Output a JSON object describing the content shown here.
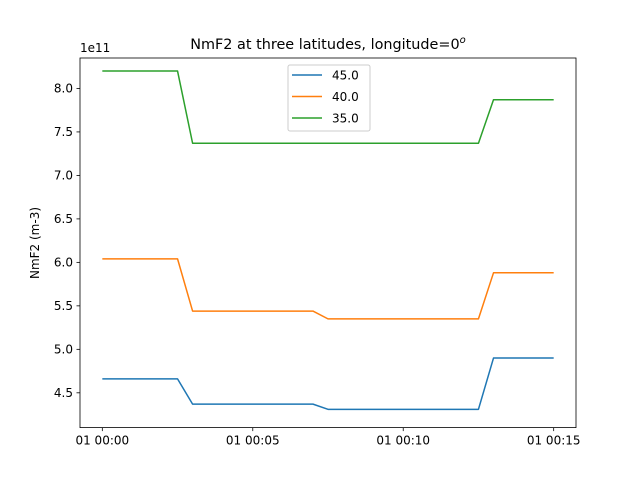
{
  "chart_data": {
    "type": "line",
    "title": "NmF2 at three latitudes, longitude=0",
    "title_superscript": "o",
    "xlabel": "",
    "ylabel": "NmF2 (m-3)",
    "y_offset_label": "1e11",
    "y_multiplier": 100000000000.0,
    "xlim": [
      "01 00:00",
      "01 00:15"
    ],
    "ylim": [
      4.1,
      8.35
    ],
    "x_ticks": [
      "01 00:00",
      "01 00:05",
      "01 00:10",
      "01 00:15"
    ],
    "y_ticks": [
      "4.5",
      "5.0",
      "5.5",
      "6.0",
      "6.5",
      "7.0",
      "7.5",
      "8.0"
    ],
    "x": [
      "01 00:00",
      "01 00:02:30",
      "01 00:03",
      "01 00:07",
      "01 00:07:30",
      "01 00:12:30",
      "01 00:13",
      "01 00:15"
    ],
    "series": [
      {
        "name": "45.0",
        "color": "#1f77b4",
        "values": [
          4.66,
          4.66,
          4.37,
          4.37,
          4.31,
          4.31,
          4.9,
          4.9
        ]
      },
      {
        "name": "40.0",
        "color": "#ff7f0e",
        "values": [
          6.04,
          6.04,
          5.44,
          5.44,
          5.35,
          5.35,
          5.88,
          5.88
        ]
      },
      {
        "name": "35.0",
        "color": "#2ca02c",
        "values": [
          8.2,
          8.2,
          7.37,
          7.37,
          7.37,
          7.37,
          7.87,
          7.87
        ]
      }
    ],
    "legend_position": "upper-center",
    "grid": false
  }
}
